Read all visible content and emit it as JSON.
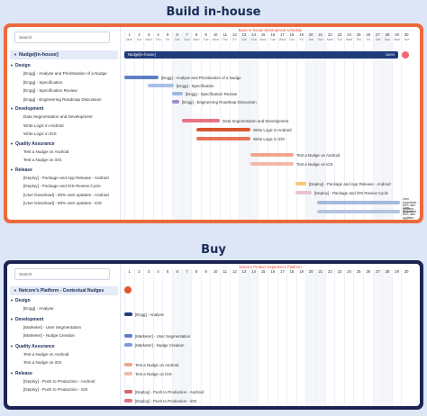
{
  "top": {
    "section_title": "Build in-house",
    "frame_color": "#ec6a3c",
    "search_placeholder": "Search",
    "plan_title": "Basic in-house development schedule",
    "project": "Nudge[in-house]",
    "summary_label": "Nudge[in-house]",
    "summary_end": "100%",
    "days": [
      "1",
      "2",
      "3",
      "4",
      "5",
      "6",
      "7",
      "8",
      "9",
      "10",
      "11",
      "12",
      "13",
      "14",
      "15",
      "16",
      "17",
      "18",
      "19",
      "20",
      "21",
      "22",
      "23",
      "24",
      "25",
      "26",
      "27",
      "28",
      "29",
      "30"
    ],
    "day_names": [
      "Mon",
      "Tue",
      "Wed",
      "Thu",
      "Fri",
      "Sat",
      "Sun",
      "Mon",
      "Tue",
      "Wed",
      "Thu",
      "Fri",
      "Sat",
      "Sun",
      "Mon",
      "Tue",
      "Wed",
      "Thu",
      "Fri",
      "Sat",
      "Sun",
      "Mon",
      "Tue",
      "Wed",
      "Thu",
      "Fri",
      "Sat",
      "Sun",
      "Mon",
      "Tue"
    ],
    "phases": [
      "Design",
      "Development",
      "Quality Assurance",
      "Release"
    ],
    "design_tasks": [
      "[Engg] - Analyse and Prioritisation of a Nudge",
      "[Engg] - Specification",
      "[Engg] - Specification Review",
      "[Engg] - Engineering Roadmap Discussion"
    ],
    "dev_tasks": [
      "Data Segmentation and Development",
      "Write Logic in Android",
      "Write Logic in iOS"
    ],
    "qa_tasks": [
      "Test a Nudge on Android",
      "Test a Nudge on iOS"
    ],
    "release_tasks": [
      "[Deploy] - Package and App Release - Android",
      "[Deploy] - Package and iOS Review Cycle",
      "[User Download] - 80% user updates - Android",
      "[User Download] - 80% user updates - iOS"
    ],
    "bar_labels": [
      "[Engg] - Analyse and Prioritisation of a Nudge",
      "[Engg] - Specification",
      "[Engg] - Specification Review",
      "[Engg] - Engineering Roadmap Discussion",
      "Data Segmentation and Development",
      "Write Logic in Android",
      "Write Logic in iOS",
      "Test a Nudge on Android",
      "Test a Nudge on iOS",
      "[Deploy] - Package and App Release - Android",
      "[Deploy] - Package and iOS Review Cycle",
      "User Download - 80% user updates - Android",
      "User Download - 80% user updates - iOS"
    ]
  },
  "bottom": {
    "section_title": "Buy",
    "frame_color": "#1b2452",
    "search_placeholder": "Search",
    "plan_title": "Netcore Product Experience Platform",
    "project": "Netcore's Platform - Contextual Nudges",
    "days": [
      "1",
      "2",
      "3",
      "4",
      "5",
      "6",
      "7",
      "8",
      "9",
      "10",
      "11",
      "12",
      "13",
      "14",
      "15",
      "16",
      "17",
      "18",
      "19",
      "20",
      "21",
      "22",
      "23",
      "24",
      "25",
      "26",
      "27",
      "28",
      "29",
      "30"
    ],
    "phases": [
      "Design",
      "Development",
      "Quality Assurance",
      "Release"
    ],
    "design_tasks": [
      "[Engg] - Analyse"
    ],
    "dev_tasks": [
      "[Marketer] - User Segmentation",
      "[Marketer] - Nudge Creation"
    ],
    "qa_tasks": [
      "Test a Nudge on Android",
      "Test a Nudge on iOS"
    ],
    "release_tasks": [
      "[Deploy] - Push to Production - Android",
      "[Deploy] - Push to Production - iOS"
    ],
    "bar_labels": [
      "[Engg] - Analyse",
      "[Marketer] - User Segmentation",
      "[Marketer] - Nudge Creation",
      "Test a Nudge on Android",
      "Test a Nudge on iOS",
      "[Deploy] - Push to Production - Android",
      "[Deploy] - Push to Production - iOS"
    ]
  }
}
